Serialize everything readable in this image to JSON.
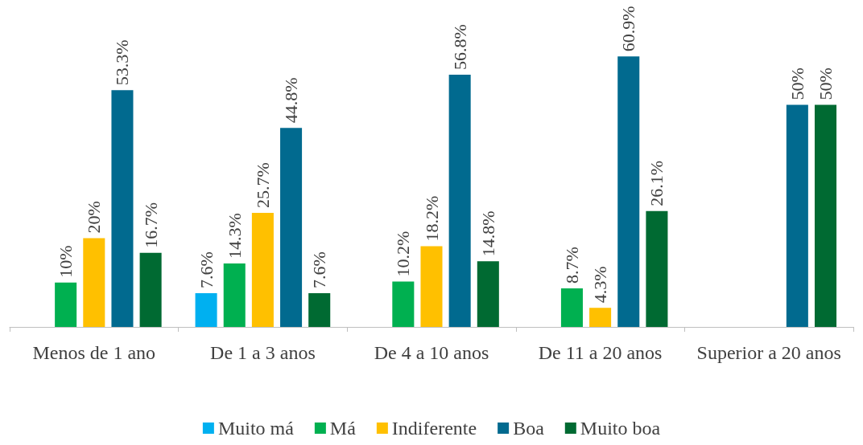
{
  "chart_data": {
    "type": "bar",
    "categories": [
      "Menos de 1 ano",
      "De 1 a 3 anos",
      "De 4 a 10 anos",
      "De 11 a 20 anos",
      "Superior a 20 anos"
    ],
    "series": [
      {
        "name": "Muito má",
        "color": "#00b0f0",
        "values": [
          null,
          7.6,
          null,
          null,
          null
        ],
        "value_labels": [
          null,
          "7.6%",
          null,
          null,
          null
        ]
      },
      {
        "name": "Má",
        "color": "#00b050",
        "values": [
          10,
          14.3,
          10.2,
          8.7,
          null
        ],
        "value_labels": [
          "10%",
          "14.3%",
          "10.2%",
          "8.7%",
          null
        ]
      },
      {
        "name": "Indiferente",
        "color": "#ffc000",
        "values": [
          20,
          25.7,
          18.2,
          4.3,
          null
        ],
        "value_labels": [
          "20%",
          "25.7%",
          "18.2%",
          "4.3%",
          null
        ]
      },
      {
        "name": "Boa",
        "color": "#016a8f",
        "values": [
          53.3,
          44.8,
          56.8,
          60.9,
          50
        ],
        "value_labels": [
          "53.3%",
          "44.8%",
          "56.8%",
          "60.9%",
          "50%"
        ]
      },
      {
        "name": "Muito boa",
        "color": "#006a32",
        "values": [
          16.7,
          7.6,
          14.8,
          26.1,
          50
        ],
        "value_labels": [
          "16.7%",
          "7.6%",
          "14.8%",
          "26.1%",
          "50%"
        ]
      }
    ],
    "legend": "bottom"
  }
}
